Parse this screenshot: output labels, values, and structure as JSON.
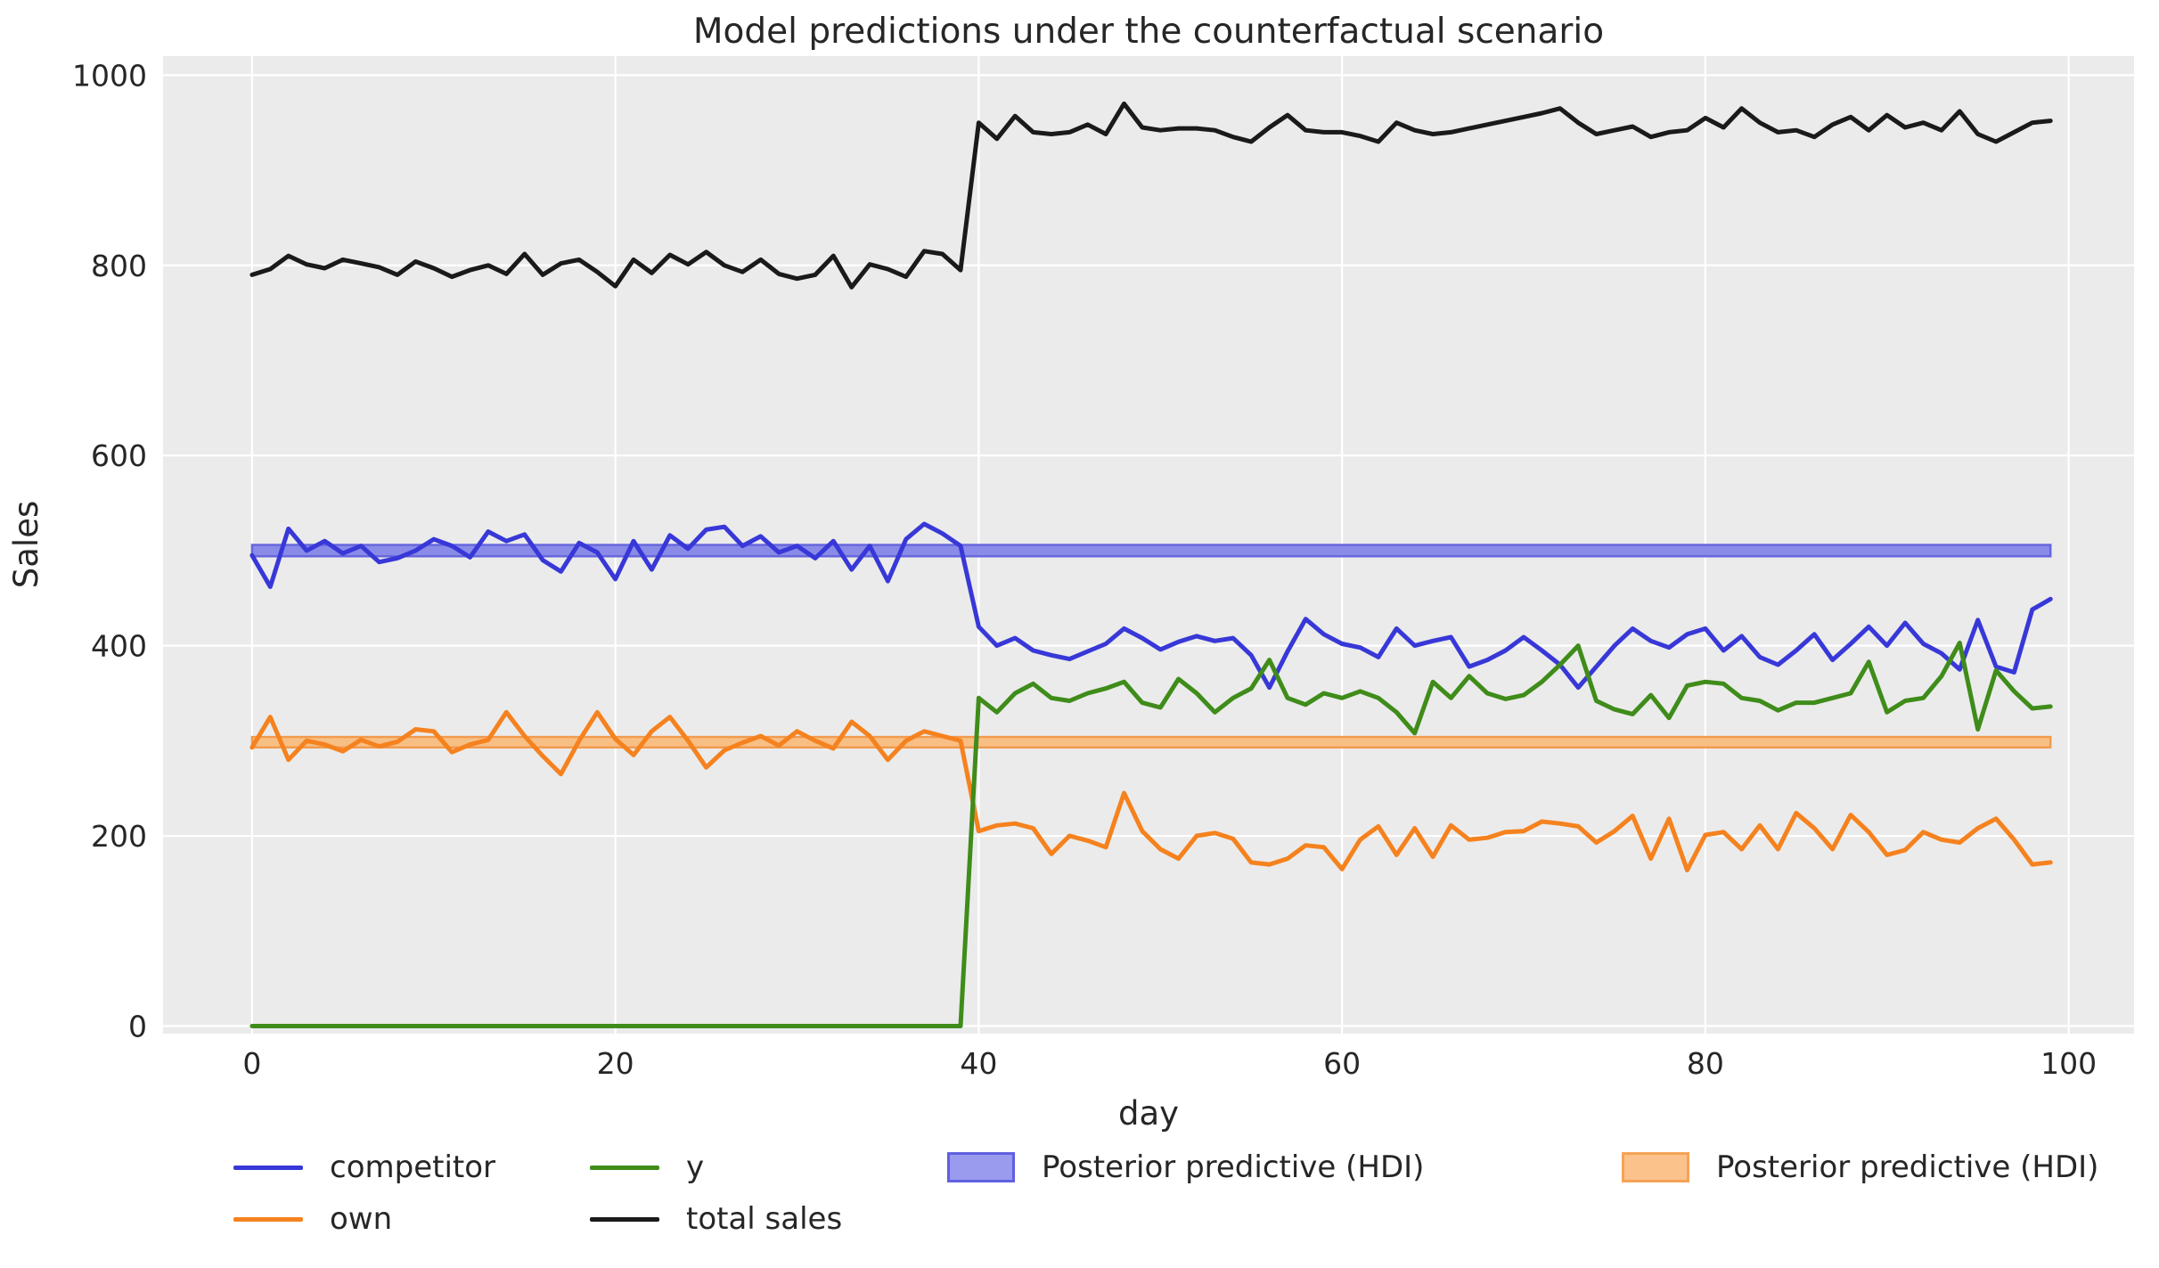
{
  "title": "Model predictions under the counterfactual scenario",
  "chart_data": {
    "type": "line",
    "title": "Model predictions under the counterfactual scenario",
    "xlabel": "day",
    "ylabel": "Sales",
    "xlim": [
      -4.9,
      103.6
    ],
    "ylim": [
      -8,
      1020
    ],
    "xticks": [
      0,
      20,
      40,
      60,
      80,
      100
    ],
    "yticks": [
      0,
      200,
      400,
      600,
      800,
      1000
    ],
    "grid": true,
    "legend_position": "bottom",
    "background_color": "#ebebeb",
    "grid_color": "#ffffff",
    "text_color": "#262626",
    "x": [
      0,
      1,
      2,
      3,
      4,
      5,
      6,
      7,
      8,
      9,
      10,
      11,
      12,
      13,
      14,
      15,
      16,
      17,
      18,
      19,
      20,
      21,
      22,
      23,
      24,
      25,
      26,
      27,
      28,
      29,
      30,
      31,
      32,
      33,
      34,
      35,
      36,
      37,
      38,
      39,
      40,
      41,
      42,
      43,
      44,
      45,
      46,
      47,
      48,
      49,
      50,
      51,
      52,
      53,
      54,
      55,
      56,
      57,
      58,
      59,
      60,
      61,
      62,
      63,
      64,
      65,
      66,
      67,
      68,
      69,
      70,
      71,
      72,
      73,
      74,
      75,
      76,
      77,
      78,
      79,
      80,
      81,
      82,
      83,
      84,
      85,
      86,
      87,
      88,
      89,
      90,
      91,
      92,
      93,
      94,
      95,
      96,
      97,
      98,
      99
    ],
    "series": [
      {
        "name": "competitor",
        "color": "#3838d8",
        "values": [
          495,
          462,
          523,
          500,
          510,
          497,
          505,
          488,
          492,
          500,
          512,
          505,
          493,
          520,
          510,
          517,
          490,
          478,
          508,
          498,
          470,
          510,
          480,
          516,
          502,
          522,
          525,
          505,
          515,
          498,
          505,
          492,
          510,
          480,
          505,
          468,
          512,
          528,
          518,
          505,
          420,
          400,
          408,
          395,
          390,
          386,
          394,
          402,
          418,
          408,
          396,
          404,
          410,
          405,
          408,
          390,
          356,
          394,
          428,
          412,
          402,
          398,
          388,
          418,
          400,
          405,
          409,
          378,
          385,
          395,
          409,
          395,
          380,
          356,
          378,
          400,
          418,
          405,
          398,
          412,
          418,
          395,
          410,
          388,
          380,
          395,
          412,
          385,
          402,
          420,
          400,
          424,
          402,
          392,
          375,
          427,
          378,
          372,
          438,
          449
        ]
      },
      {
        "name": "own",
        "color": "#f5821e",
        "values": [
          293,
          325,
          280,
          300,
          296,
          289,
          301,
          294,
          299,
          312,
          310,
          288,
          296,
          301,
          330,
          305,
          284,
          265,
          300,
          330,
          302,
          285,
          310,
          325,
          300,
          272,
          290,
          298,
          305,
          295,
          310,
          300,
          292,
          320,
          305,
          280,
          300,
          310,
          305,
          300,
          205,
          211,
          213,
          208,
          181,
          200,
          195,
          188,
          245,
          205,
          186,
          176,
          200,
          203,
          197,
          172,
          170,
          176,
          190,
          188,
          165,
          196,
          210,
          180,
          208,
          178,
          211,
          196,
          198,
          204,
          205,
          215,
          213,
          210,
          193,
          205,
          221,
          176,
          218,
          164,
          201,
          204,
          186,
          211,
          186,
          224,
          208,
          186,
          222,
          204,
          180,
          185,
          204,
          196,
          193,
          208,
          218,
          196,
          170,
          172
        ]
      },
      {
        "name": "y",
        "color": "#3f8c1a",
        "values": [
          0,
          0,
          0,
          0,
          0,
          0,
          0,
          0,
          0,
          0,
          0,
          0,
          0,
          0,
          0,
          0,
          0,
          0,
          0,
          0,
          0,
          0,
          0,
          0,
          0,
          0,
          0,
          0,
          0,
          0,
          0,
          0,
          0,
          0,
          0,
          0,
          0,
          0,
          0,
          0,
          345,
          330,
          350,
          360,
          345,
          342,
          350,
          355,
          362,
          340,
          335,
          365,
          350,
          330,
          345,
          355,
          385,
          345,
          338,
          350,
          345,
          352,
          345,
          330,
          308,
          362,
          345,
          368,
          350,
          344,
          348,
          362,
          380,
          400,
          342,
          333,
          328,
          348,
          324,
          358,
          362,
          360,
          345,
          342,
          332,
          340,
          340,
          345,
          350,
          383,
          330,
          342,
          345,
          368,
          403,
          312,
          374,
          352,
          334,
          336
        ]
      },
      {
        "name": "total sales",
        "color": "#1a1a1a",
        "values": [
          790,
          796,
          810,
          801,
          797,
          806,
          802,
          798,
          790,
          804,
          797,
          788,
          795,
          800,
          791,
          812,
          790,
          802,
          806,
          793,
          778,
          806,
          792,
          811,
          801,
          814,
          800,
          793,
          806,
          791,
          786,
          790,
          810,
          777,
          801,
          796,
          788,
          815,
          812,
          795,
          950,
          933,
          957,
          940,
          938,
          940,
          948,
          938,
          970,
          945,
          942,
          944,
          944,
          942,
          935,
          930,
          945,
          958,
          942,
          940,
          940,
          936,
          930,
          950,
          942,
          938,
          940,
          944,
          948,
          952,
          956,
          960,
          965,
          950,
          938,
          942,
          946,
          935,
          940,
          942,
          955,
          945,
          965,
          950,
          940,
          942,
          935,
          948,
          956,
          942,
          958,
          945,
          950,
          942,
          962,
          938,
          930,
          940,
          950,
          952
        ]
      }
    ],
    "bands": [
      {
        "name": "Posterior predictive (HDI)",
        "series": "competitor",
        "lo": 494,
        "hi": 506,
        "x_start": 0,
        "x_end": 99,
        "fill": "#8a8ae8",
        "edge": "#6565dd"
      },
      {
        "name": "Posterior predictive (HDI)",
        "series": "own",
        "lo": 293,
        "hi": 304,
        "x_start": 0,
        "x_end": 99,
        "fill": "#f8bf85",
        "edge": "#f19a4d"
      }
    ],
    "legend": {
      "items": [
        {
          "type": "line",
          "color": "#3838d8",
          "label": "competitor"
        },
        {
          "type": "line",
          "color": "#f5821e",
          "label": "own"
        },
        {
          "type": "line",
          "color": "#3f8c1a",
          "label": "y"
        },
        {
          "type": "line",
          "color": "#1a1a1a",
          "label": "total sales"
        },
        {
          "type": "patch",
          "fill": "#9a9aef",
          "edge": "#6060e0",
          "label": "Posterior predictive (HDI)"
        },
        {
          "type": "patch",
          "fill": "#fbc28c",
          "edge": "#f5a356",
          "label": "Posterior predictive (HDI)"
        }
      ]
    }
  }
}
